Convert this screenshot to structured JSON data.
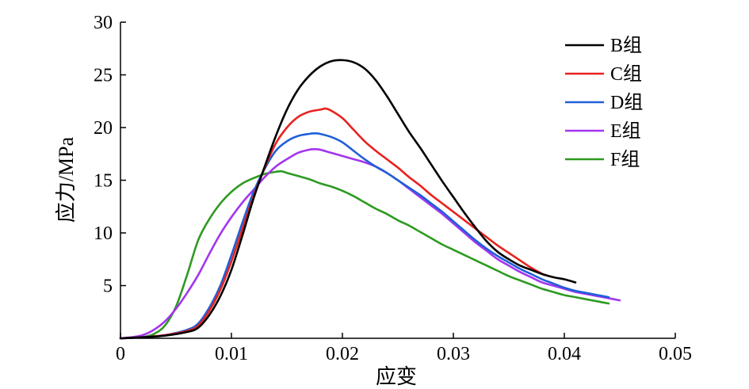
{
  "chart_data": {
    "type": "line",
    "xlabel": "应变",
    "ylabel": "应力/MPa",
    "xlim": [
      0,
      0.05
    ],
    "ylim": [
      0,
      30
    ],
    "x_ticks": [
      0,
      0.01,
      0.02,
      0.03,
      0.04,
      0.05
    ],
    "x_tick_labels": [
      "0",
      "0.01",
      "0.02",
      "0.03",
      "0.04",
      "0.05"
    ],
    "y_ticks": [
      5,
      10,
      15,
      20,
      25,
      30
    ],
    "y_tick_labels": [
      "5",
      "10",
      "15",
      "20",
      "25",
      "30"
    ],
    "grid": false,
    "legend_position": "top-right",
    "series": [
      {
        "name": "B组",
        "color": "#000000",
        "points": [
          [
            0,
            0
          ],
          [
            0.002,
            0.1
          ],
          [
            0.004,
            0.25
          ],
          [
            0.006,
            0.6
          ],
          [
            0.007,
            1.0
          ],
          [
            0.008,
            2.2
          ],
          [
            0.009,
            4.0
          ],
          [
            0.01,
            6.5
          ],
          [
            0.011,
            9.8
          ],
          [
            0.012,
            13.3
          ],
          [
            0.013,
            16.3
          ],
          [
            0.014,
            19.2
          ],
          [
            0.015,
            21.7
          ],
          [
            0.016,
            23.6
          ],
          [
            0.017,
            24.9
          ],
          [
            0.018,
            25.8
          ],
          [
            0.019,
            26.3
          ],
          [
            0.02,
            26.4
          ],
          [
            0.021,
            26.2
          ],
          [
            0.022,
            25.6
          ],
          [
            0.023,
            24.5
          ],
          [
            0.024,
            23.0
          ],
          [
            0.025,
            21.3
          ],
          [
            0.026,
            19.6
          ],
          [
            0.027,
            18.1
          ],
          [
            0.028,
            16.5
          ],
          [
            0.029,
            14.9
          ],
          [
            0.03,
            13.4
          ],
          [
            0.031,
            11.9
          ],
          [
            0.032,
            10.5
          ],
          [
            0.033,
            9.2
          ],
          [
            0.034,
            8.2
          ],
          [
            0.035,
            7.5
          ],
          [
            0.036,
            6.9
          ],
          [
            0.037,
            6.5
          ],
          [
            0.038,
            6.1
          ],
          [
            0.039,
            5.8
          ],
          [
            0.04,
            5.6
          ],
          [
            0.041,
            5.3
          ]
        ]
      },
      {
        "name": "C组",
        "color": "#e8211f",
        "points": [
          [
            0,
            0
          ],
          [
            0.002,
            0.1
          ],
          [
            0.004,
            0.3
          ],
          [
            0.006,
            0.7
          ],
          [
            0.007,
            1.2
          ],
          [
            0.008,
            2.6
          ],
          [
            0.009,
            4.6
          ],
          [
            0.01,
            7.3
          ],
          [
            0.011,
            10.4
          ],
          [
            0.012,
            13.5
          ],
          [
            0.013,
            16.2
          ],
          [
            0.014,
            18.5
          ],
          [
            0.015,
            20.0
          ],
          [
            0.016,
            21.0
          ],
          [
            0.017,
            21.5
          ],
          [
            0.018,
            21.7
          ],
          [
            0.0185,
            21.8
          ],
          [
            0.019,
            21.6
          ],
          [
            0.02,
            20.9
          ],
          [
            0.021,
            19.8
          ],
          [
            0.022,
            18.7
          ],
          [
            0.023,
            17.8
          ],
          [
            0.024,
            17.0
          ],
          [
            0.025,
            16.2
          ],
          [
            0.026,
            15.3
          ],
          [
            0.027,
            14.5
          ],
          [
            0.028,
            13.6
          ],
          [
            0.029,
            12.8
          ],
          [
            0.03,
            12.0
          ],
          [
            0.031,
            11.2
          ],
          [
            0.032,
            10.4
          ],
          [
            0.033,
            9.6
          ],
          [
            0.034,
            8.8
          ],
          [
            0.035,
            8.1
          ],
          [
            0.036,
            7.4
          ],
          [
            0.037,
            6.7
          ],
          [
            0.0382,
            6.0
          ]
        ]
      },
      {
        "name": "D组",
        "color": "#1f5fd8",
        "points": [
          [
            0,
            0
          ],
          [
            0.002,
            0.1
          ],
          [
            0.004,
            0.3
          ],
          [
            0.006,
            0.8
          ],
          [
            0.007,
            1.4
          ],
          [
            0.008,
            2.9
          ],
          [
            0.009,
            5.0
          ],
          [
            0.01,
            7.9
          ],
          [
            0.011,
            11.0
          ],
          [
            0.012,
            13.9
          ],
          [
            0.013,
            16.1
          ],
          [
            0.014,
            17.8
          ],
          [
            0.015,
            18.7
          ],
          [
            0.016,
            19.2
          ],
          [
            0.017,
            19.4
          ],
          [
            0.0175,
            19.45
          ],
          [
            0.018,
            19.4
          ],
          [
            0.019,
            19.1
          ],
          [
            0.02,
            18.6
          ],
          [
            0.021,
            17.8
          ],
          [
            0.022,
            17.0
          ],
          [
            0.023,
            16.3
          ],
          [
            0.024,
            15.7
          ],
          [
            0.025,
            15.0
          ],
          [
            0.026,
            14.3
          ],
          [
            0.027,
            13.6
          ],
          [
            0.028,
            12.8
          ],
          [
            0.029,
            12.0
          ],
          [
            0.03,
            11.1
          ],
          [
            0.031,
            10.2
          ],
          [
            0.032,
            9.3
          ],
          [
            0.033,
            8.5
          ],
          [
            0.034,
            7.8
          ],
          [
            0.035,
            7.2
          ],
          [
            0.036,
            6.6
          ],
          [
            0.037,
            6.1
          ],
          [
            0.038,
            5.6
          ],
          [
            0.039,
            5.2
          ],
          [
            0.04,
            4.8
          ],
          [
            0.041,
            4.5
          ],
          [
            0.042,
            4.3
          ],
          [
            0.043,
            4.1
          ],
          [
            0.044,
            3.9
          ]
        ]
      },
      {
        "name": "E组",
        "color": "#a335f0",
        "points": [
          [
            0,
            0
          ],
          [
            0.001,
            0.1
          ],
          [
            0.002,
            0.3
          ],
          [
            0.003,
            0.8
          ],
          [
            0.004,
            1.6
          ],
          [
            0.005,
            2.8
          ],
          [
            0.006,
            4.3
          ],
          [
            0.007,
            6.0
          ],
          [
            0.008,
            8.0
          ],
          [
            0.009,
            9.9
          ],
          [
            0.01,
            11.5
          ],
          [
            0.011,
            12.9
          ],
          [
            0.012,
            14.1
          ],
          [
            0.013,
            15.3
          ],
          [
            0.014,
            16.3
          ],
          [
            0.015,
            17.0
          ],
          [
            0.016,
            17.6
          ],
          [
            0.017,
            17.9
          ],
          [
            0.0175,
            17.95
          ],
          [
            0.018,
            17.9
          ],
          [
            0.019,
            17.6
          ],
          [
            0.02,
            17.3
          ],
          [
            0.021,
            17.0
          ],
          [
            0.022,
            16.7
          ],
          [
            0.023,
            16.3
          ],
          [
            0.024,
            15.7
          ],
          [
            0.025,
            15.0
          ],
          [
            0.026,
            14.2
          ],
          [
            0.027,
            13.4
          ],
          [
            0.028,
            12.6
          ],
          [
            0.029,
            11.8
          ],
          [
            0.03,
            10.9
          ],
          [
            0.031,
            10.0
          ],
          [
            0.032,
            9.1
          ],
          [
            0.033,
            8.3
          ],
          [
            0.034,
            7.5
          ],
          [
            0.035,
            6.9
          ],
          [
            0.036,
            6.3
          ],
          [
            0.037,
            5.8
          ],
          [
            0.038,
            5.3
          ],
          [
            0.039,
            5.0
          ],
          [
            0.04,
            4.7
          ],
          [
            0.041,
            4.4
          ],
          [
            0.042,
            4.2
          ],
          [
            0.043,
            4.0
          ],
          [
            0.044,
            3.8
          ],
          [
            0.045,
            3.6
          ]
        ]
      },
      {
        "name": "F组",
        "color": "#2e9a21",
        "points": [
          [
            0,
            0
          ],
          [
            0.001,
            0.05
          ],
          [
            0.002,
            0.1
          ],
          [
            0.003,
            0.4
          ],
          [
            0.004,
            1.2
          ],
          [
            0.005,
            3.0
          ],
          [
            0.006,
            6.0
          ],
          [
            0.007,
            9.3
          ],
          [
            0.008,
            11.3
          ],
          [
            0.009,
            12.8
          ],
          [
            0.01,
            13.9
          ],
          [
            0.011,
            14.7
          ],
          [
            0.012,
            15.2
          ],
          [
            0.013,
            15.6
          ],
          [
            0.014,
            15.8
          ],
          [
            0.0145,
            15.85
          ],
          [
            0.015,
            15.7
          ],
          [
            0.016,
            15.4
          ],
          [
            0.017,
            15.1
          ],
          [
            0.018,
            14.7
          ],
          [
            0.019,
            14.4
          ],
          [
            0.02,
            14.0
          ],
          [
            0.021,
            13.5
          ],
          [
            0.022,
            12.9
          ],
          [
            0.023,
            12.3
          ],
          [
            0.024,
            11.8
          ],
          [
            0.025,
            11.2
          ],
          [
            0.026,
            10.7
          ],
          [
            0.027,
            10.1
          ],
          [
            0.028,
            9.5
          ],
          [
            0.029,
            8.9
          ],
          [
            0.03,
            8.4
          ],
          [
            0.031,
            7.9
          ],
          [
            0.032,
            7.4
          ],
          [
            0.033,
            6.9
          ],
          [
            0.034,
            6.4
          ],
          [
            0.035,
            5.9
          ],
          [
            0.036,
            5.5
          ],
          [
            0.037,
            5.1
          ],
          [
            0.038,
            4.7
          ],
          [
            0.039,
            4.4
          ],
          [
            0.04,
            4.1
          ],
          [
            0.041,
            3.9
          ],
          [
            0.042,
            3.7
          ],
          [
            0.043,
            3.5
          ],
          [
            0.044,
            3.3
          ]
        ]
      }
    ]
  }
}
